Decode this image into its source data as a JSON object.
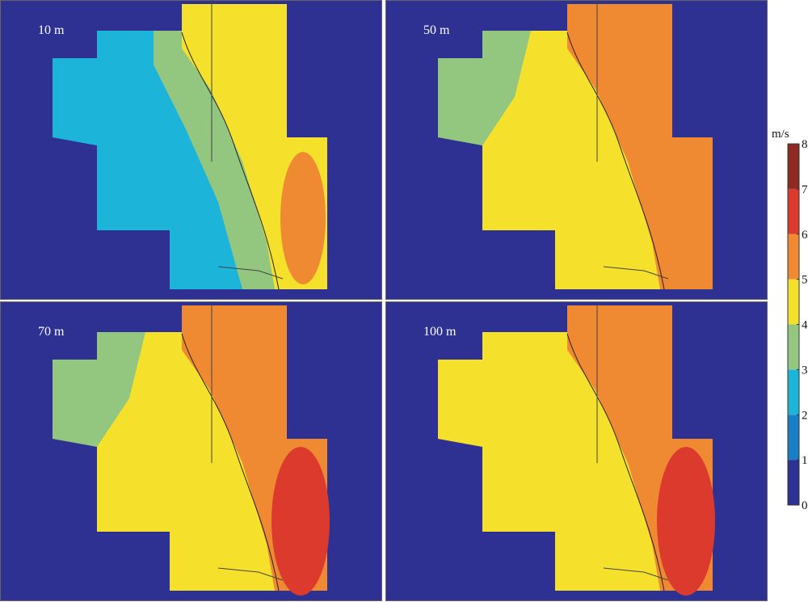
{
  "panels": [
    {
      "label": "10 m"
    },
    {
      "label": "50 m"
    },
    {
      "label": "70 m"
    },
    {
      "label": "100 m"
    }
  ],
  "colorbar": {
    "unit": "m/s",
    "ticks": [
      0,
      1,
      2,
      3,
      4,
      5,
      6,
      7,
      8
    ],
    "colors": [
      "#2e3192",
      "#1a7ec6",
      "#1db4da",
      "#93c77f",
      "#f5e02c",
      "#ef8a33",
      "#dc3a2c",
      "#8e2a22"
    ]
  }
}
